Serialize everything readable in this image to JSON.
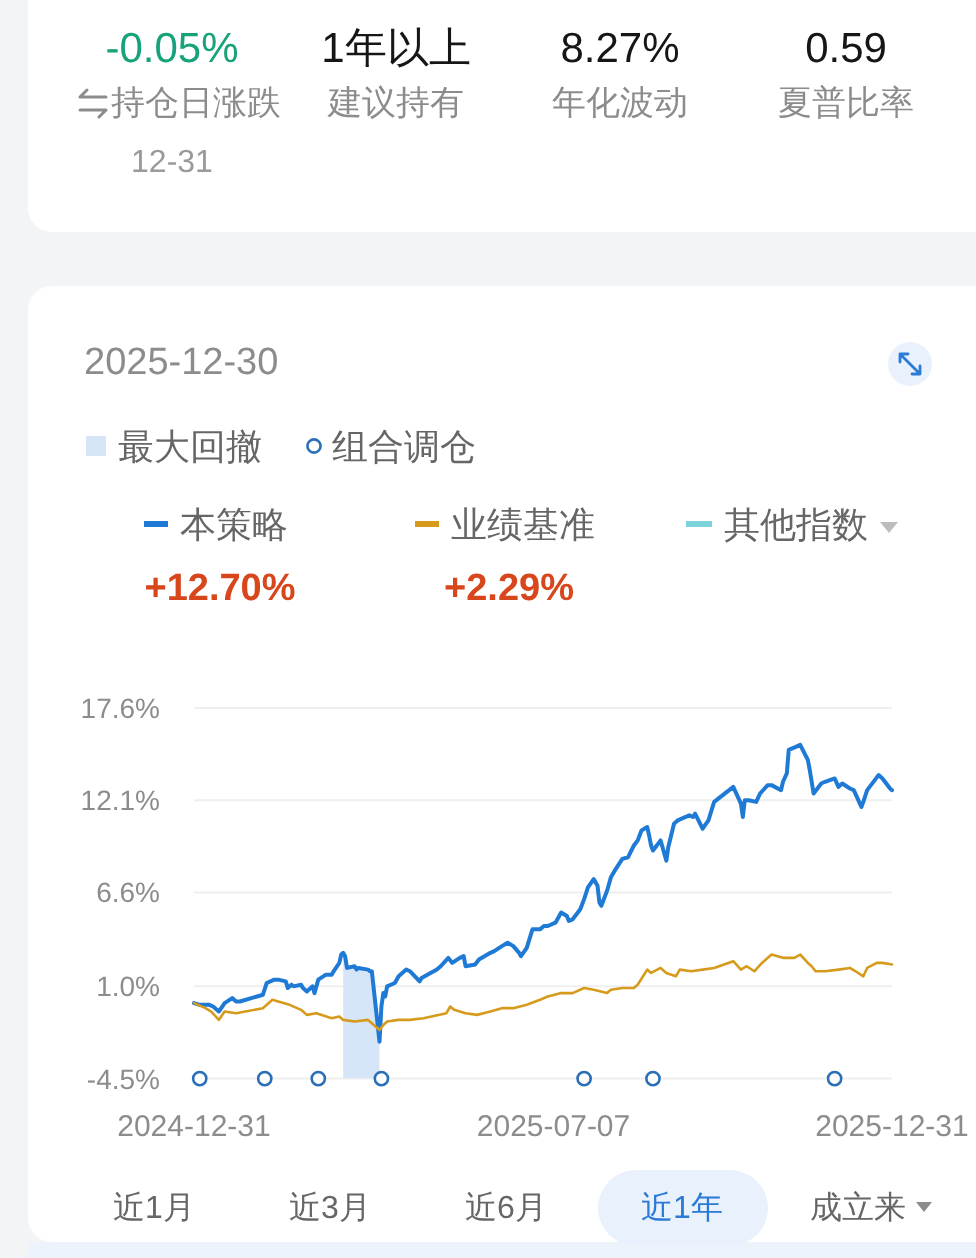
{
  "chart_data": [
    {
      "type": "other",
      "annotations": [
        "-0.05%",
        "持仓日涨跌",
        "12-31",
        "1年以上",
        "建议持有",
        "8.27%",
        "年化波动",
        "0.59",
        "夏普比率"
      ]
    },
    {
      "type": "line",
      "title": "2025-12-30",
      "legend": "top",
      "grid": "y",
      "xlim": [
        "2024-12-31",
        "2025-12-31"
      ],
      "xticks": [
        "2024-12-31",
        "2025-07-07",
        "2025-12-31"
      ],
      "ylim": [
        -4.5,
        17.6
      ],
      "yticks": [
        {
          "value": 17.6,
          "label": "17.6%"
        },
        {
          "value": 12.1,
          "label": "12.1%"
        },
        {
          "value": 6.6,
          "label": "6.6%"
        },
        {
          "value": 1.0,
          "label": "1.0%"
        },
        {
          "value": -4.5,
          "label": "-4.5%"
        }
      ],
      "bands": [
        {
          "axis": "x",
          "from": "2025-03-19",
          "to": "2025-04-07",
          "label": "最大回撤",
          "color": "#d6e6f8"
        }
      ],
      "series": [
        {
          "name": "本策略",
          "type": "line",
          "color": "#1f7ad6",
          "x": [
            "2024-12-31",
            "2025-01-03",
            "2025-01-08",
            "2025-01-10",
            "2025-01-13",
            "2025-01-16",
            "2025-01-20",
            "2025-01-22",
            "2025-01-24",
            "2025-02-05",
            "2025-02-07",
            "2025-02-11",
            "2025-02-13",
            "2025-02-17",
            "2025-02-18",
            "2025-02-20",
            "2025-02-21",
            "2025-02-25",
            "2025-02-26",
            "2025-02-28",
            "2025-03-03",
            "2025-03-04",
            "2025-03-06",
            "2025-03-10",
            "2025-03-13",
            "2025-03-14",
            "2025-03-17",
            "2025-03-18",
            "2025-03-19",
            "2025-03-20",
            "2025-03-21",
            "2025-03-25",
            "2025-03-26",
            "2025-03-27",
            "2025-04-01",
            "2025-04-02",
            "2025-04-03",
            "2025-04-07",
            "2025-04-08",
            "2025-04-09",
            "2025-04-10",
            "2025-04-11",
            "2025-04-15",
            "2025-04-17",
            "2025-04-21",
            "2025-04-23",
            "2025-04-28",
            "2025-04-29",
            "2025-05-07",
            "2025-05-09",
            "2025-05-13",
            "2025-05-15",
            "2025-05-19",
            "2025-05-21",
            "2025-05-22",
            "2025-05-27",
            "2025-05-29",
            "2025-06-04",
            "2025-06-06",
            "2025-06-10",
            "2025-06-13",
            "2025-06-16",
            "2025-06-19",
            "2025-06-20",
            "2025-06-23",
            "2025-06-26",
            "2025-06-30",
            "2025-07-02",
            "2025-07-04",
            "2025-07-08",
            "2025-07-11",
            "2025-07-14",
            "2025-07-15",
            "2025-07-17",
            "2025-07-21",
            "2025-07-23",
            "2025-07-25",
            "2025-07-28",
            "2025-07-30",
            "2025-07-31",
            "2025-08-01",
            "2025-08-04",
            "2025-08-06",
            "2025-08-08",
            "2025-08-12",
            "2025-08-15",
            "2025-08-18",
            "2025-08-20",
            "2025-08-22",
            "2025-08-25",
            "2025-08-26",
            "2025-08-27",
            "2025-08-28",
            "2025-09-01",
            "2025-09-02",
            "2025-09-03",
            "2025-09-04",
            "2025-09-05",
            "2025-09-08",
            "2025-09-10",
            "2025-09-12",
            "2025-09-16",
            "2025-09-18",
            "2025-09-19",
            "2025-09-23",
            "2025-09-26",
            "2025-09-29",
            "2025-10-09",
            "2025-10-13",
            "2025-10-14",
            "2025-10-15",
            "2025-10-17",
            "2025-10-21",
            "2025-10-23",
            "2025-10-27",
            "2025-10-29",
            "2025-11-03",
            "2025-11-04",
            "2025-11-06",
            "2025-11-07",
            "2025-11-11",
            "2025-11-13",
            "2025-11-17",
            "2025-11-18",
            "2025-11-20",
            "2025-11-24",
            "2025-11-26",
            "2025-12-01",
            "2025-12-03",
            "2025-12-05",
            "2025-12-09",
            "2025-12-11",
            "2025-12-15",
            "2025-12-16",
            "2025-12-18",
            "2025-12-22",
            "2025-12-24",
            "2025-12-26",
            "2025-12-30",
            "2025-12-31"
          ],
          "values": [
            0.0,
            -0.1,
            -0.1,
            -0.2,
            -0.5,
            0.0,
            0.3,
            0.1,
            0.1,
            0.5,
            1.2,
            1.4,
            1.4,
            1.3,
            0.9,
            1.1,
            1.0,
            1.1,
            0.9,
            0.7,
            1.0,
            0.6,
            1.4,
            1.7,
            1.7,
            1.9,
            2.4,
            2.9,
            3.0,
            2.8,
            2.1,
            2.2,
            2.0,
            2.1,
            2.0,
            1.9,
            1.9,
            -2.3,
            -0.2,
            0.6,
            0.4,
            1.0,
            1.2,
            1.6,
            2.0,
            1.9,
            1.3,
            1.5,
            2.0,
            2.2,
            2.7,
            2.4,
            2.7,
            2.8,
            2.2,
            2.3,
            2.6,
            3.0,
            3.1,
            3.4,
            3.6,
            3.4,
            3.0,
            2.8,
            3.3,
            4.4,
            4.4,
            4.6,
            4.6,
            4.8,
            5.4,
            5.2,
            4.9,
            5.0,
            5.6,
            6.2,
            6.9,
            7.4,
            7.0,
            6.0,
            5.8,
            6.7,
            7.5,
            7.9,
            8.6,
            8.7,
            9.4,
            9.7,
            10.3,
            10.5,
            10.0,
            9.4,
            9.1,
            9.7,
            9.3,
            8.9,
            8.5,
            9.3,
            10.7,
            10.9,
            11.0,
            11.2,
            11.1,
            11.3,
            10.4,
            10.9,
            12.0,
            12.9,
            11.9,
            11.1,
            12.1,
            12.1,
            12.0,
            12.5,
            13.0,
            13.0,
            12.7,
            13.2,
            13.7,
            15.1,
            15.3,
            15.4,
            14.5,
            13.9,
            12.5,
            13.1,
            13.2,
            13.4,
            12.9,
            13.1,
            12.8,
            12.7,
            11.7,
            12.0,
            12.7,
            13.3,
            13.6,
            13.4,
            12.8,
            12.7
          ]
        },
        {
          "name": "业绩基准",
          "type": "line",
          "color": "#d69a1c",
          "x": [
            "2024-12-31",
            "2025-01-06",
            "2025-01-09",
            "2025-01-13",
            "2025-01-16",
            "2025-01-22",
            "2025-02-05",
            "2025-02-10",
            "2025-02-13",
            "2025-02-19",
            "2025-02-25",
            "2025-02-28",
            "2025-03-05",
            "2025-03-13",
            "2025-03-17",
            "2025-03-19",
            "2025-03-25",
            "2025-04-01",
            "2025-04-03",
            "2025-04-07",
            "2025-04-09",
            "2025-04-11",
            "2025-04-17",
            "2025-04-23",
            "2025-04-30",
            "2025-05-12",
            "2025-05-14",
            "2025-05-16",
            "2025-05-22",
            "2025-05-28",
            "2025-06-04",
            "2025-06-10",
            "2025-06-16",
            "2025-06-23",
            "2025-06-30",
            "2025-07-04",
            "2025-07-11",
            "2025-07-17",
            "2025-07-23",
            "2025-07-28",
            "2025-08-04",
            "2025-08-06",
            "2025-08-12",
            "2025-08-18",
            "2025-08-20",
            "2025-08-25",
            "2025-08-27",
            "2025-09-01",
            "2025-09-04",
            "2025-09-09",
            "2025-09-11",
            "2025-09-17",
            "2025-09-23",
            "2025-09-29",
            "2025-10-09",
            "2025-10-13",
            "2025-10-16",
            "2025-10-20",
            "2025-10-24",
            "2025-10-29",
            "2025-11-04",
            "2025-11-10",
            "2025-11-13",
            "2025-11-17",
            "2025-11-19",
            "2025-11-21",
            "2025-11-26",
            "2025-12-03",
            "2025-12-09",
            "2025-12-12",
            "2025-12-16",
            "2025-12-18",
            "2025-12-23",
            "2025-12-26",
            "2025-12-31"
          ],
          "values": [
            0.0,
            -0.3,
            -0.5,
            -1.0,
            -0.5,
            -0.6,
            -0.3,
            0.2,
            0.1,
            -0.1,
            -0.4,
            -0.7,
            -0.6,
            -0.9,
            -0.8,
            -1.0,
            -1.1,
            -1.0,
            -1.2,
            -1.6,
            -1.3,
            -1.1,
            -1.0,
            -1.0,
            -0.9,
            -0.6,
            -0.2,
            -0.4,
            -0.6,
            -0.7,
            -0.5,
            -0.3,
            -0.3,
            -0.1,
            0.2,
            0.4,
            0.6,
            0.6,
            0.9,
            0.8,
            0.6,
            0.8,
            0.9,
            0.9,
            1.1,
            2.0,
            1.8,
            2.1,
            1.8,
            1.6,
            2.0,
            1.9,
            2.0,
            2.1,
            2.5,
            2.0,
            2.2,
            1.9,
            2.4,
            2.9,
            2.7,
            2.7,
            2.9,
            2.4,
            2.2,
            1.9,
            1.9,
            2.0,
            2.1,
            1.9,
            1.6,
            2.1,
            2.4,
            2.4,
            2.3
          ]
        },
        {
          "name": "组合调仓",
          "type": "scatter",
          "marker": "circle",
          "color": "#2a6fb8",
          "x": [
            "2025-01-03",
            "2025-02-06",
            "2025-03-06",
            "2025-04-08",
            "2025-07-23",
            "2025-08-28",
            "2025-12-01"
          ],
          "values": [
            -4.5,
            -4.5,
            -4.5,
            -4.5,
            -4.5,
            -4.5,
            -4.5
          ]
        }
      ],
      "annotations": [
        "+12.70%",
        "+2.29%",
        "其他指数",
        "近1月",
        "近3月",
        "近6月",
        "近1年",
        "成立来"
      ]
    }
  ]
}
